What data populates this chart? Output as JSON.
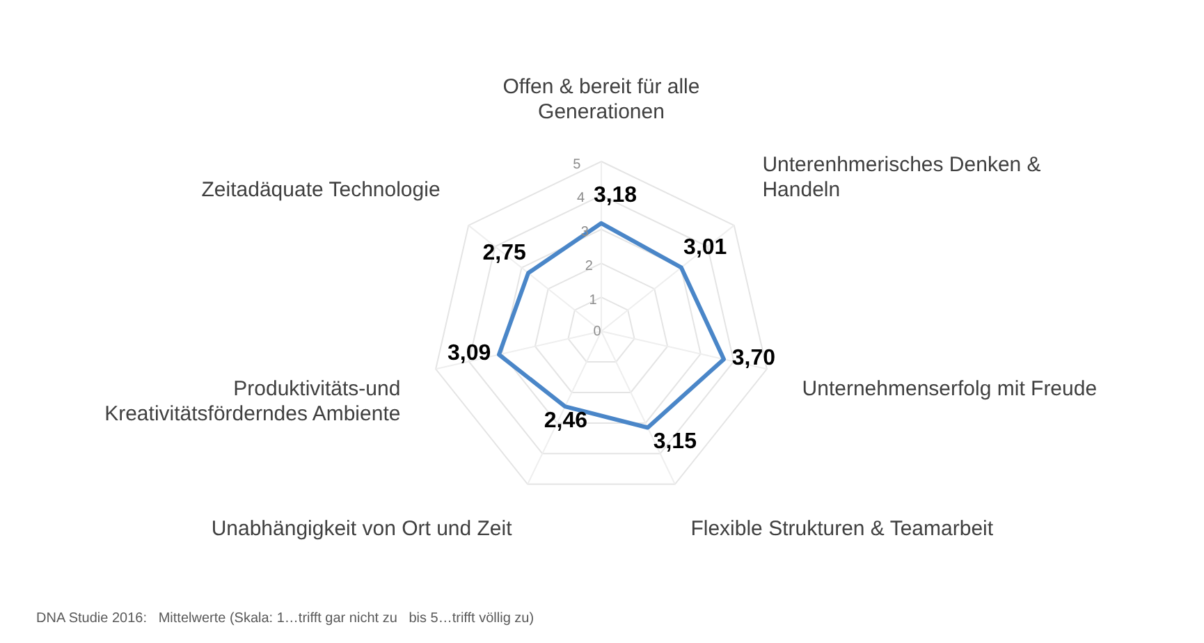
{
  "chart_data": {
    "type": "radar",
    "categories": [
      "Offen & bereit für alle\nGenerationen",
      "Unterenhmerisches Denken &\nHandeln",
      "Unternehmenserfolg mit Freude",
      "Flexible Strukturen & Teamarbeit",
      "Unabhängigkeit von Ort und Zeit",
      "Produktivitäts-und\nKreativitätsförderndes Ambiente",
      "Zeitadäquate Technologie"
    ],
    "series": [
      {
        "color": "#4a86c8",
        "values": [
          3.18,
          3.01,
          3.7,
          3.15,
          2.46,
          3.09,
          2.75
        ],
        "value_labels": [
          "3,18",
          "3,01",
          "3,70",
          "3,15",
          "2,46",
          "3,09",
          "2,75"
        ]
      }
    ],
    "ylim": [
      0,
      5
    ],
    "yticks": [
      0,
      1,
      2,
      3,
      4,
      5
    ],
    "grid": true,
    "legend": false,
    "marker": "none",
    "annotations": [
      "DNA Studie 2016:   Mittelwerte (Skala: 1…trifft gar nicht zu   bis 5…trifft völlig zu)"
    ]
  }
}
